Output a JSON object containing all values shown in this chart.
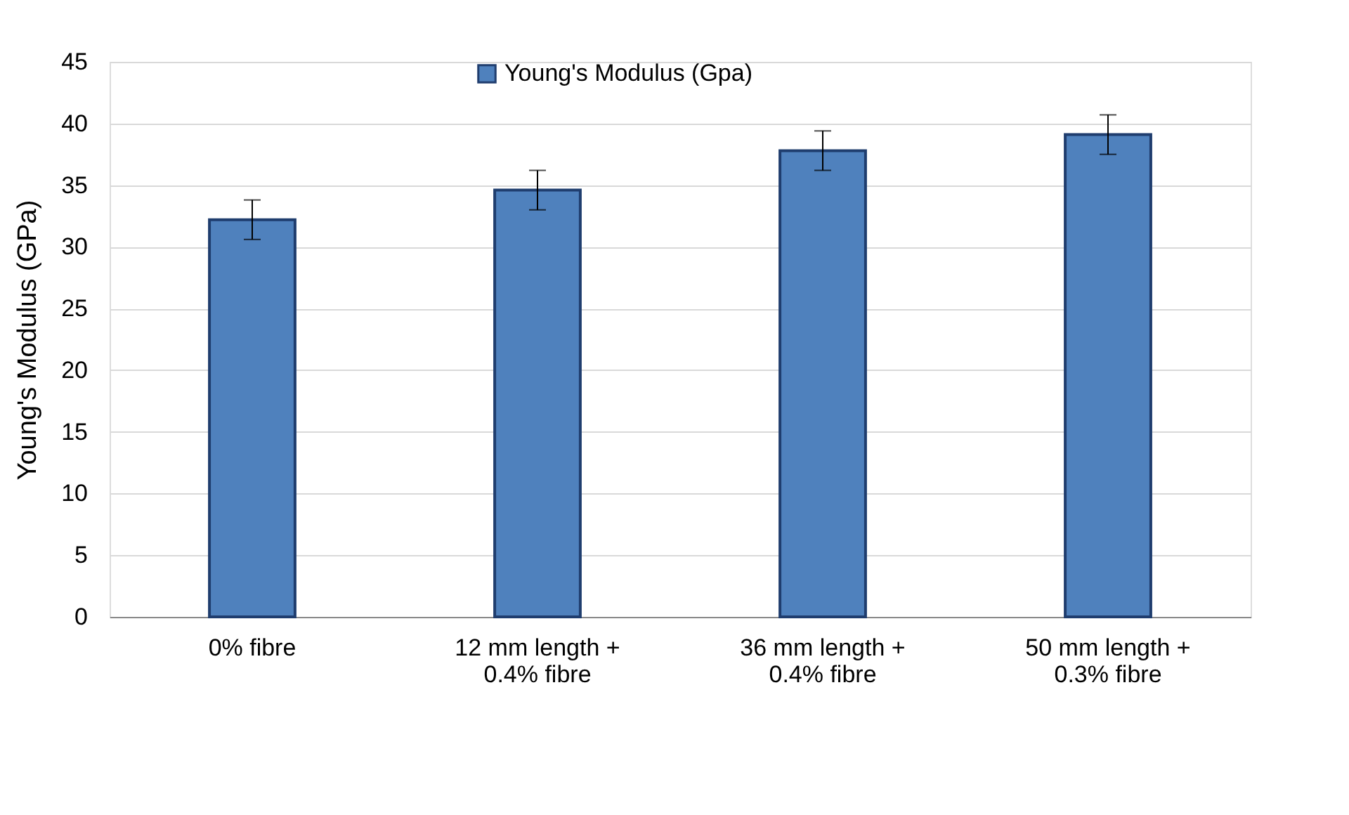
{
  "chart_data": {
    "type": "bar",
    "ylabel": "Young's Modulus (GPa)",
    "categories": [
      "0% fibre",
      "12 mm length + 0.4% fibre",
      "36 mm length + 0.4% fibre",
      "50 mm length + 0.3% fibre"
    ],
    "series": [
      {
        "name": "Young's Modulus (Gpa)",
        "color": "#4f81bd",
        "values": [
          32.2,
          34.6,
          37.8,
          39.1
        ],
        "errors": [
          1.6,
          1.6,
          1.6,
          1.6
        ]
      }
    ],
    "ylim": [
      0,
      45
    ],
    "yticks": [
      0,
      5,
      10,
      15,
      20,
      25,
      30,
      35,
      40,
      45
    ],
    "grid": "y",
    "legend": "top"
  }
}
